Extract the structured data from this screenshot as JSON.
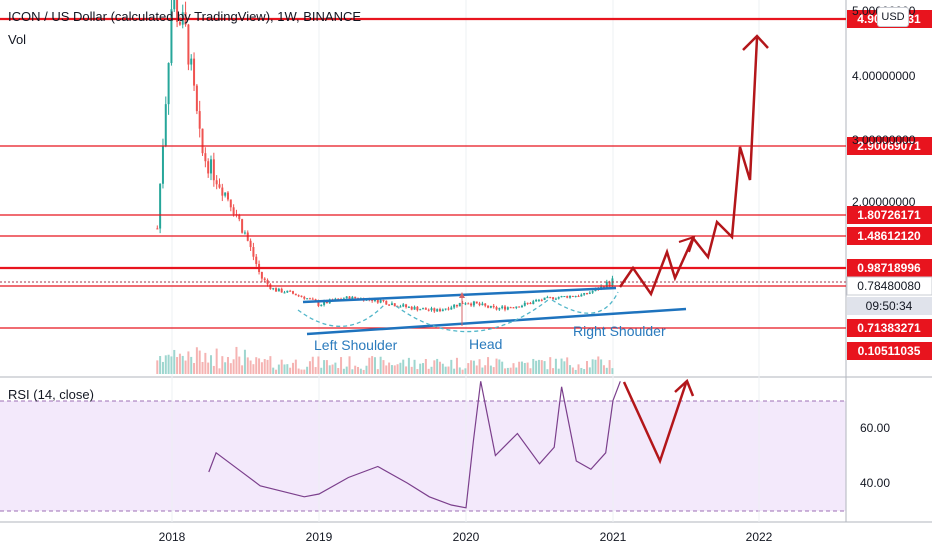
{
  "header": {
    "symbol_title": "ICON / US Dollar (calculated by TradingView), 1W, BINANCE",
    "vol_label": "Vol",
    "currency": "USD",
    "rsi_label": "RSI (14, close)"
  },
  "price_axis": {
    "tick_labels": [
      "5.00000000",
      "4.00000000",
      "3.00000000",
      "2.00000000"
    ],
    "level_labels": [
      "4.90000031",
      "2.90069071",
      "1.80726171",
      "1.48612120",
      "0.98718996",
      "0.78480080",
      "09:50:34",
      "0.71383271",
      "0.10511035"
    ]
  },
  "rsi_axis": {
    "tick_labels": [
      "60.00",
      "40.00"
    ]
  },
  "time_axis": {
    "labels": [
      "2018",
      "2019",
      "2020",
      "2021",
      "2022"
    ]
  },
  "annotations": {
    "left_shoulder": "Left Shoulder",
    "head": "Head",
    "right_shoulder": "Right Shoulder"
  },
  "colors": {
    "level_line": "#e8141e",
    "trend_line": "#1e73be",
    "projection": "#b3161a",
    "rsi_line": "#7b3f8c",
    "rsi_band": "#f3e9fb",
    "up_candle": "#26a69a",
    "down_candle": "#ef5350",
    "annotation_text": "#2b7bbd"
  },
  "chart_data": [
    {
      "type": "line",
      "title": "ICON / US Dollar (calculated by TradingView), 1W, BINANCE",
      "ylabel": "",
      "xlabel": "",
      "horizontal_levels": [
        4.90000031,
        2.90069071,
        1.80726171,
        1.4861212,
        0.98718996,
        0.7848008,
        0.71383271,
        0.10511035
      ],
      "x_ticks": [
        "2018",
        "2019",
        "2020",
        "2021",
        "2022"
      ],
      "series": [
        {
          "x": [
            2017.9,
            2018.0,
            2018.1,
            2018.2,
            2018.3,
            2018.4,
            2018.5,
            2018.6,
            2018.7,
            2018.8,
            2018.9,
            2019.0,
            2019.2,
            2019.4,
            2019.6,
            2019.8,
            2020.0,
            2020.2,
            2020.4,
            2020.6,
            2020.8,
            2021.0
          ],
          "values": [
            1.6,
            5.2,
            4.6,
            2.8,
            2.4,
            2.0,
            1.5,
            0.9,
            0.7,
            0.65,
            0.55,
            0.45,
            0.55,
            0.5,
            0.42,
            0.38,
            0.48,
            0.4,
            0.45,
            0.55,
            0.6,
            0.85
          ]
        }
      ]
    },
    {
      "type": "line",
      "title": "RSI (14, close)",
      "ylim": [
        28,
        78
      ],
      "y_ticks": [
        60,
        40
      ],
      "series": [
        {
          "x": [
            2018.25,
            2018.3,
            2018.45,
            2018.6,
            2018.75,
            2018.9,
            2019.0,
            2019.2,
            2019.4,
            2019.6,
            2019.75,
            2019.9,
            2020.0,
            2020.05,
            2020.1,
            2020.2,
            2020.35,
            2020.5,
            2020.6,
            2020.65,
            2020.75,
            2020.85,
            2020.95,
            2021.0,
            2021.05
          ],
          "values": [
            44,
            51,
            45,
            39,
            37,
            35,
            36,
            42,
            46,
            40,
            35,
            32,
            31,
            55,
            77,
            50,
            58,
            47,
            53,
            75,
            48,
            45,
            51,
            70,
            77
          ]
        }
      ]
    }
  ]
}
